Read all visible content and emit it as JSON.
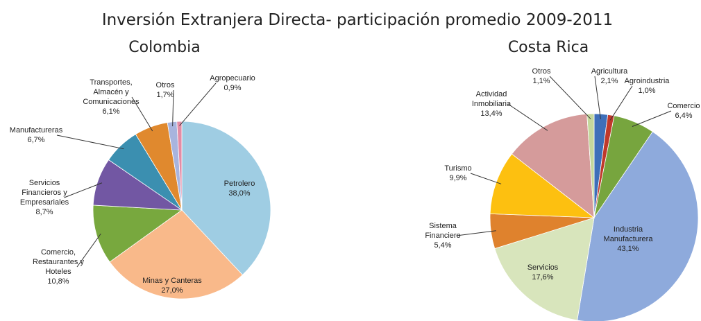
{
  "title": "Inversión Extranjera Directa- participación promedio 2009-2011",
  "chart_data": [
    {
      "type": "pie",
      "title": "Colombia",
      "categories": [
        "Petrolero",
        "Minas y Canteras",
        "Comercio, Restaurantes y Hoteles",
        "Servicios Financieros y Empresariales",
        "Manufactureras",
        "Transportes, Almacén y Comunicaciones",
        "Otros",
        "Agropecuario"
      ],
      "values": [
        38.0,
        27.0,
        10.8,
        8.7,
        6.7,
        6.1,
        1.7,
        0.9
      ],
      "value_labels": [
        "38,0%",
        "27,0%",
        "10,8%",
        "8,7%",
        "6,7%",
        "6,1%",
        "1,7%",
        "0,9%"
      ],
      "colors": [
        "#9fcde3",
        "#f9b98a",
        "#78a83e",
        "#7257a3",
        "#3b8fb0",
        "#e0892e",
        "#a8b4de",
        "#e38ca6"
      ]
    },
    {
      "type": "pie",
      "title": "Costa Rica",
      "categories": [
        "Agricultura",
        "Agroindustria",
        "Comercio",
        "Industria Manufacturera",
        "Servicios",
        "Sistema Financiero",
        "Turismo",
        "Actividad Inmobiliaria",
        "Otros"
      ],
      "values": [
        2.1,
        1.0,
        6.4,
        43.1,
        17.6,
        5.4,
        9.9,
        13.4,
        1.1
      ],
      "value_labels": [
        "2,1%",
        "1,0%",
        "6,4%",
        "43,1%",
        "17,6%",
        "5,4%",
        "9,9%",
        "13,4%",
        "1,1%"
      ],
      "colors": [
        "#3e6fb9",
        "#c0392b",
        "#77a53e",
        "#8eaadc",
        "#d8e5bc",
        "#df822d",
        "#fdc010",
        "#d59b9b",
        "#c4d79c"
      ]
    }
  ]
}
